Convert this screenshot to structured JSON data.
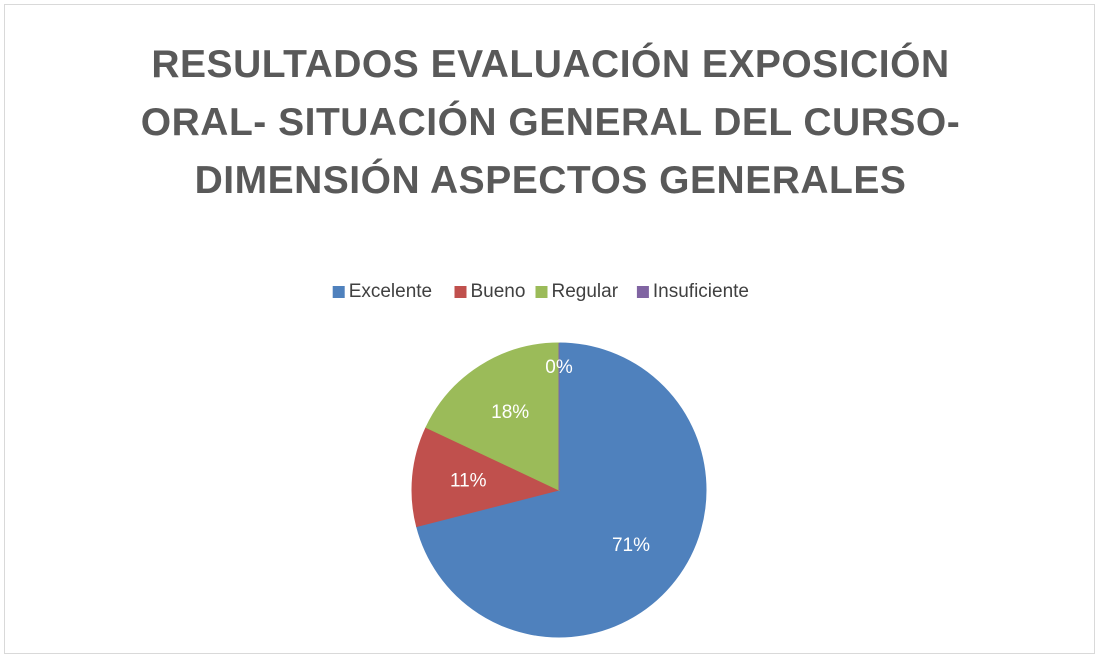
{
  "chart_data": {
    "type": "pie",
    "title": "RESULTADOS EVALUACIÓN EXPOSICIÓN ORAL- SITUACIÓN GENERAL DEL CURSO- DIMENSIÓN ASPECTOS GENERALES",
    "categories": [
      "Excelente",
      "Bueno",
      "Regular",
      "Insuficiente"
    ],
    "values": [
      71,
      11,
      18,
      0
    ],
    "value_labels": [
      "71%",
      "11%",
      "18%",
      "0%"
    ],
    "colors": [
      "#4f81bd",
      "#c0504d",
      "#9bbb59",
      "#8064a2"
    ],
    "legend": "top"
  }
}
